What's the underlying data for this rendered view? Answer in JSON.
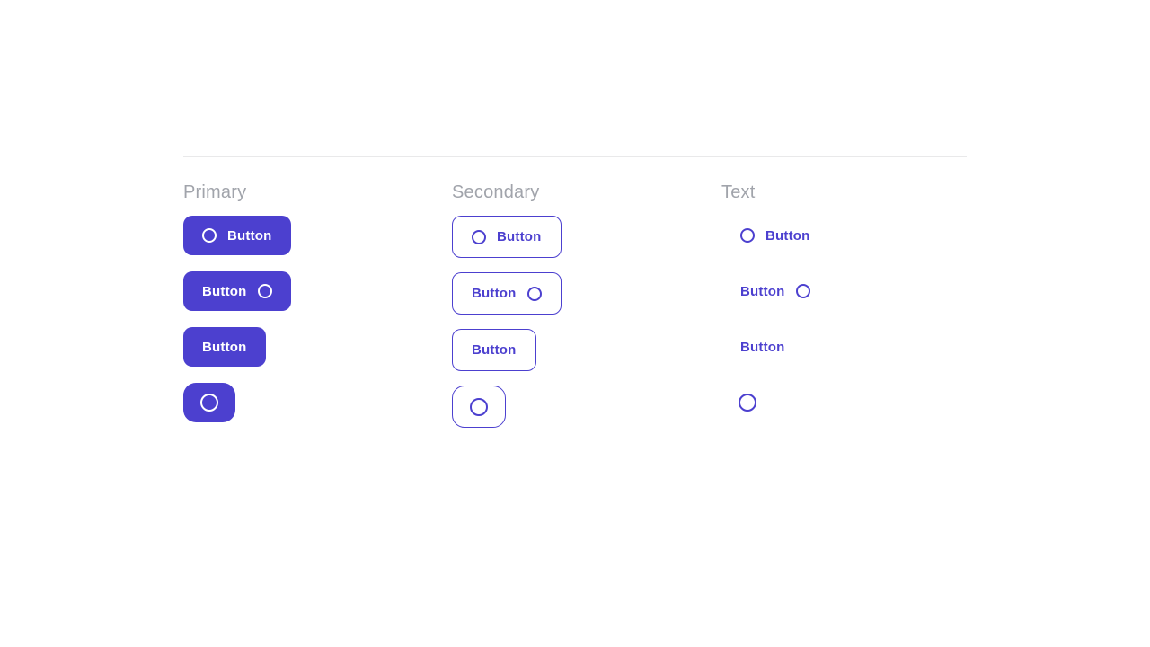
{
  "theme": {
    "primary_color": "#4c40cf",
    "on_primary_color": "#ffffff",
    "heading_color": "#a1a4ab",
    "divider_color": "#e9e9ea",
    "background_color": "#ffffff"
  },
  "sections": [
    {
      "heading": "Primary",
      "variant": "contained",
      "buttons": [
        {
          "label": "Button",
          "icon": "circle-outline-icon",
          "icon_position": "start"
        },
        {
          "label": "Button",
          "icon": "circle-outline-icon",
          "icon_position": "end"
        },
        {
          "label": "Button",
          "icon": "",
          "icon_position": "none"
        },
        {
          "label": "",
          "icon": "circle-outline-icon",
          "icon_position": "only"
        }
      ]
    },
    {
      "heading": "Secondary",
      "variant": "outlined",
      "buttons": [
        {
          "label": "Button",
          "icon": "circle-outline-icon",
          "icon_position": "start"
        },
        {
          "label": "Button",
          "icon": "circle-outline-icon",
          "icon_position": "end"
        },
        {
          "label": "Button",
          "icon": "",
          "icon_position": "none"
        },
        {
          "label": "",
          "icon": "circle-outline-icon",
          "icon_position": "only"
        }
      ]
    },
    {
      "heading": "Text",
      "variant": "text",
      "buttons": [
        {
          "label": "Button",
          "icon": "circle-outline-icon",
          "icon_position": "start"
        },
        {
          "label": "Button",
          "icon": "circle-outline-icon",
          "icon_position": "end"
        },
        {
          "label": "Button",
          "icon": "",
          "icon_position": "none"
        },
        {
          "label": "",
          "icon": "circle-outline-icon",
          "icon_position": "only"
        }
      ]
    }
  ]
}
